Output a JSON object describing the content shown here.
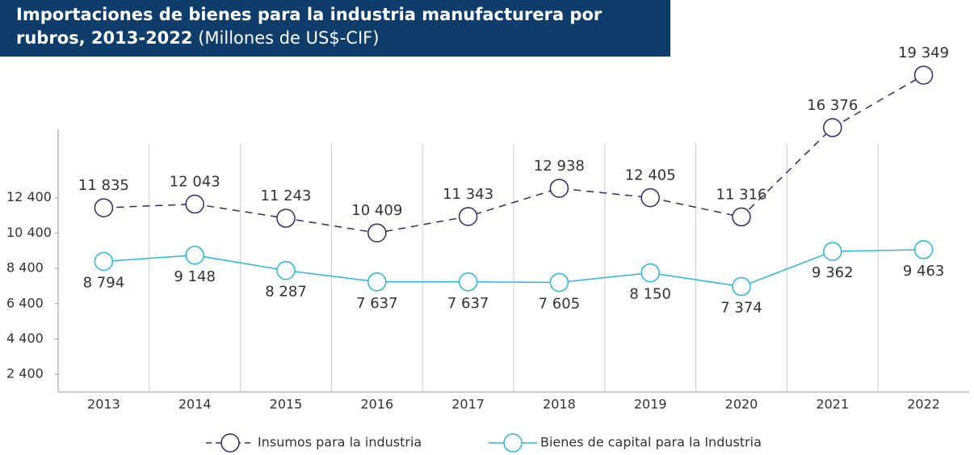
{
  "chart_data": {
    "type": "line",
    "title": "Importaciones de bienes para la industria manufacturera por rubros, 2013-2022",
    "subtitle": "(Millones de US$-CIF)",
    "categories": [
      "2013",
      "2014",
      "2015",
      "2016",
      "2017",
      "2018",
      "2019",
      "2020",
      "2021",
      "2022"
    ],
    "series": [
      {
        "name": "Insumos para la industria",
        "color": "#2e2a6e",
        "dashed": true,
        "values": [
          11835,
          12043,
          11243,
          10409,
          11343,
          12938,
          12405,
          11316,
          16376,
          19349
        ],
        "value_labels": [
          "11 835",
          "12 043",
          "11 243",
          "10 409",
          "11 343",
          "12 938",
          "12 405",
          "11 316",
          "16 376",
          "19 349"
        ]
      },
      {
        "name": "Bienes de capital para la Industria",
        "color": "#29b6e0",
        "dashed": false,
        "values": [
          8794,
          9148,
          8287,
          7637,
          7637,
          7605,
          8150,
          7374,
          9362,
          9463
        ],
        "value_labels": [
          "8 794",
          "9 148",
          "8 287",
          "7 637",
          "7 637",
          "7 605",
          "8 150",
          "7 374",
          "9 362",
          "9 463"
        ]
      }
    ],
    "ylim": [
      1400,
      20400
    ],
    "yticks": [
      {
        "value": 2400,
        "label": "2 400"
      },
      {
        "value": 4400,
        "label": "4 400"
      },
      {
        "value": 6400,
        "label": "6 400"
      },
      {
        "value": 8400,
        "label": "8 400"
      },
      {
        "value": 10400,
        "label": "10 400"
      },
      {
        "value": 12400,
        "label": "12 400"
      }
    ]
  }
}
